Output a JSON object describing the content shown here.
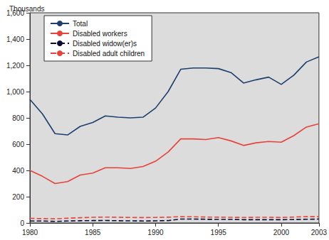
{
  "chart_data": {
    "type": "line",
    "ylabel": "Thousands",
    "x": [
      1980,
      1981,
      1982,
      1983,
      1984,
      1985,
      1986,
      1987,
      1988,
      1989,
      1990,
      1991,
      1992,
      1993,
      1994,
      1995,
      1996,
      1997,
      1998,
      1999,
      2000,
      2001,
      2002,
      2003
    ],
    "series": [
      {
        "name": "Total",
        "color": "#1c3f6e",
        "line_style": "solid",
        "values": [
          940,
          830,
          680,
          670,
          735,
          765,
          815,
          805,
          800,
          805,
          875,
          1000,
          1170,
          1180,
          1180,
          1175,
          1145,
          1065,
          1090,
          1110,
          1055,
          1125,
          1225,
          1265
        ]
      },
      {
        "name": "Disabled workers",
        "color": "#e8423a",
        "line_style": "solid",
        "values": [
          400,
          355,
          300,
          315,
          365,
          380,
          420,
          420,
          415,
          430,
          470,
          540,
          640,
          640,
          635,
          650,
          625,
          590,
          610,
          620,
          615,
          665,
          730,
          755
        ]
      },
      {
        "name": "Disabled widow(er)s",
        "color": "#0a0a33",
        "line_style": "dashed",
        "values": [
          15,
          15,
          12,
          15,
          17,
          18,
          19,
          17,
          16,
          15,
          16,
          18,
          30,
          30,
          28,
          27,
          27,
          25,
          25,
          25,
          25,
          26,
          28,
          30
        ]
      },
      {
        "name": "Disabled adult children",
        "color": "#e8423a",
        "line_style": "dashed",
        "values": [
          35,
          33,
          32,
          36,
          40,
          43,
          45,
          43,
          42,
          41,
          42,
          44,
          48,
          47,
          45,
          44,
          43,
          42,
          43,
          43,
          42,
          45,
          48,
          48
        ]
      }
    ],
    "xlim": [
      1980,
      2003
    ],
    "xticks": [
      1980,
      1985,
      1990,
      1995,
      2000,
      2003
    ],
    "ylim": [
      0,
      1600
    ],
    "yticks": [
      0,
      200,
      400,
      600,
      800,
      {
        "value": 1000,
        "label": "1,000"
      },
      {
        "value": 1200,
        "label": "1,200"
      },
      {
        "value": 1400,
        "label": "1,400"
      },
      {
        "value": 1600,
        "label": "1,600"
      }
    ],
    "grid": false,
    "legend": "upper left"
  }
}
